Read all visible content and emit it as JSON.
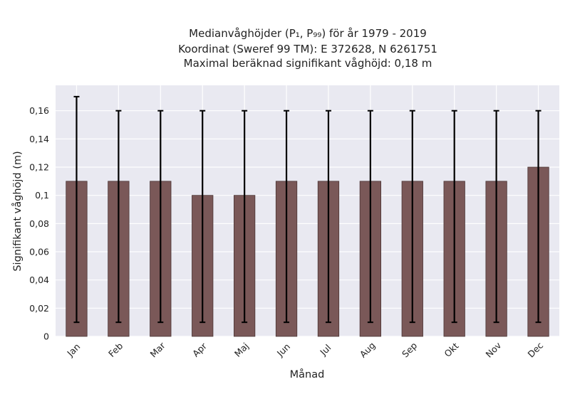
{
  "chart_data": {
    "type": "bar",
    "title_lines": [
      "Medianvåghöjder (P₁, P₉₉) för år 1979 - 2019",
      "Koordinat (Sweref 99 TM): E 372628, N 6261751",
      "Maximal beräknad signifikant våghöjd: 0,18 m"
    ],
    "xlabel": "Månad",
    "ylabel": "Signifikant våghöjd (m)",
    "categories": [
      "Jan",
      "Feb",
      "Mar",
      "Apr",
      "Maj",
      "Jun",
      "Jul",
      "Aug",
      "Sep",
      "Okt",
      "Nov",
      "Dec"
    ],
    "values": [
      0.11,
      0.11,
      0.11,
      0.1,
      0.1,
      0.11,
      0.11,
      0.11,
      0.11,
      0.11,
      0.11,
      0.12
    ],
    "error_low": [
      0.01,
      0.01,
      0.01,
      0.01,
      0.01,
      0.01,
      0.01,
      0.01,
      0.01,
      0.01,
      0.01,
      0.01
    ],
    "error_high": [
      0.17,
      0.16,
      0.16,
      0.16,
      0.16,
      0.16,
      0.16,
      0.16,
      0.16,
      0.16,
      0.16,
      0.16
    ],
    "ylim": [
      0,
      0.178
    ],
    "yticks": [
      0,
      0.02,
      0.04,
      0.06,
      0.08,
      0.1,
      0.12,
      0.14,
      0.16
    ],
    "ytick_labels": [
      "0",
      "0,02",
      "0,04",
      "0,06",
      "0,08",
      "0,1",
      "0,12",
      "0,14",
      "0,16"
    ],
    "grid": true,
    "colors": {
      "bar": "#7a5858",
      "bar_edge": "#4a3535",
      "plot_background": "#e9e9f1",
      "grid": "#ffffff",
      "error_bar": "#000000"
    }
  }
}
